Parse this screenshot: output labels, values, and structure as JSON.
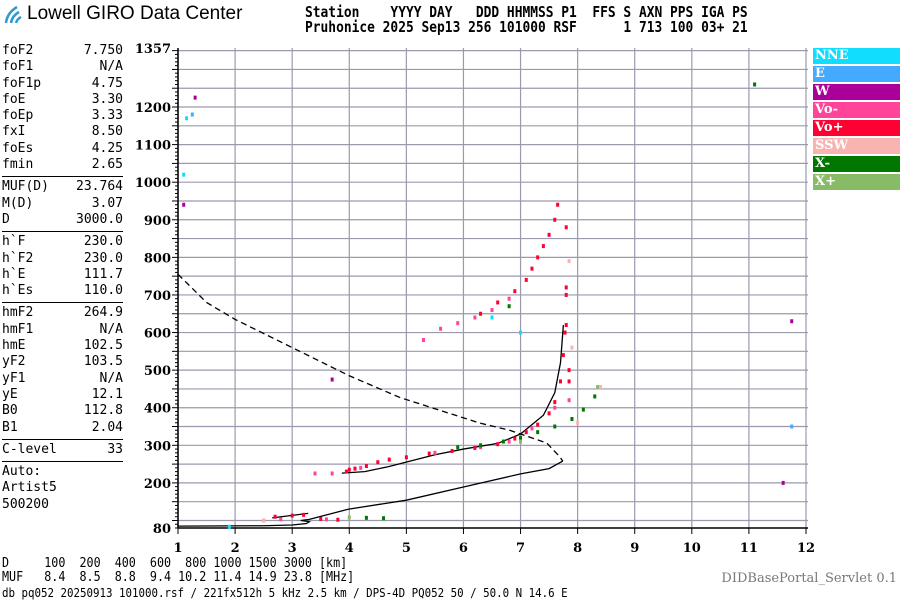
{
  "header": {
    "logo_text": "Lowell GIRO Data Center",
    "line1": "Station    YYYY DAY   DDD HHMMSS P1  FFS S AXN PPS IGA PS",
    "line2": "Pruhonice 2025 Sep13 256 101000 RSF      1 713 100 03+ 21"
  },
  "params": {
    "group1": [
      {
        "name": "foF2",
        "value": "7.750"
      },
      {
        "name": "foF1",
        "value": "N/A"
      },
      {
        "name": "foF1p",
        "value": "4.75"
      },
      {
        "name": "foE",
        "value": "3.30"
      },
      {
        "name": "foEp",
        "value": "3.33"
      },
      {
        "name": "fxI",
        "value": "8.50"
      },
      {
        "name": "foEs",
        "value": "4.25"
      },
      {
        "name": "fmin",
        "value": "2.65"
      }
    ],
    "group2": [
      {
        "name": "MUF(D)",
        "value": "23.764"
      },
      {
        "name": "M(D)",
        "value": "3.07"
      },
      {
        "name": "D",
        "value": "3000.0"
      }
    ],
    "group3": [
      {
        "name": "h`F",
        "value": "230.0"
      },
      {
        "name": "h`F2",
        "value": "230.0"
      },
      {
        "name": "h`E",
        "value": "111.7"
      },
      {
        "name": "h`Es",
        "value": "110.0"
      }
    ],
    "group4": [
      {
        "name": "hmF2",
        "value": "264.9"
      },
      {
        "name": "hmF1",
        "value": "N/A"
      },
      {
        "name": "hmE",
        "value": "102.5"
      },
      {
        "name": "yF2",
        "value": "103.5"
      },
      {
        "name": "yF1",
        "value": "N/A"
      },
      {
        "name": "yE",
        "value": "12.1"
      },
      {
        "name": "B0",
        "value": "112.8"
      },
      {
        "name": "B1",
        "value": "2.04"
      }
    ],
    "group5": [
      {
        "name": "C-level",
        "value": "33"
      }
    ],
    "auto": [
      "Auto:",
      "Artist5",
      "500200"
    ]
  },
  "legend": [
    {
      "label": "NNE",
      "color": "#11ddff"
    },
    {
      "label": "E",
      "color": "#44aaff"
    },
    {
      "label": "W",
      "color": "#aa0099"
    },
    {
      "label": "Vo-",
      "color": "#ff4499"
    },
    {
      "label": "Vo+",
      "color": "#ff0033"
    },
    {
      "label": "SSW",
      "color": "#f8b4b0"
    },
    {
      "label": "X-",
      "color": "#007700"
    },
    {
      "label": "X+",
      "color": "#88bb66"
    }
  ],
  "bottom": {
    "d_row": "D     100  200  400  600  800 1000 1500 3000 [km]",
    "muf_row": "MUF   8.4  8.5  8.8  9.4 10.2 11.4 14.9 23.8 [MHz]",
    "servlet": "DIDBasePortal_Servlet 0.1",
    "footer": "db pq052 20250913 101000.rsf / 221fx512h 5 kHz 2.5 km / DPS-4D PQ052 50 / 50.0 N 14.6 E"
  },
  "chart_data": {
    "type": "scatter",
    "xlim": [
      1,
      12
    ],
    "ylim": [
      80,
      1357
    ],
    "x_ticks": [
      "1",
      "2",
      "3",
      "4",
      "5",
      "6",
      "7",
      "8",
      "9",
      "10",
      "11",
      "12"
    ],
    "y_ticks": [
      "1357",
      "1200",
      "1100",
      "1000",
      "900",
      "800",
      "700",
      "600",
      "500",
      "400",
      "300",
      "200",
      "80"
    ],
    "grid": true,
    "legend_placement": "right",
    "series": [
      {
        "name": "Vo+",
        "color": "#ff0033",
        "points": [
          [
            3.95,
            230
          ],
          [
            4.0,
            235
          ],
          [
            4.1,
            238
          ],
          [
            4.3,
            245
          ],
          [
            4.5,
            255
          ],
          [
            4.7,
            262
          ],
          [
            5.0,
            268
          ],
          [
            5.4,
            278
          ],
          [
            5.8,
            285
          ],
          [
            6.2,
            293
          ],
          [
            6.6,
            303
          ],
          [
            6.9,
            318
          ],
          [
            7.1,
            335
          ],
          [
            7.3,
            355
          ],
          [
            7.5,
            385
          ],
          [
            7.6,
            415
          ],
          [
            7.7,
            470
          ],
          [
            7.75,
            540
          ],
          [
            7.78,
            600
          ],
          [
            7.8,
            620
          ],
          [
            7.85,
            470
          ],
          [
            7.85,
            500
          ],
          [
            6.3,
            650
          ],
          [
            6.6,
            680
          ],
          [
            6.9,
            710
          ],
          [
            7.1,
            740
          ],
          [
            7.2,
            770
          ],
          [
            7.3,
            800
          ],
          [
            7.4,
            830
          ],
          [
            7.5,
            860
          ],
          [
            7.6,
            900
          ],
          [
            7.65,
            940
          ],
          [
            7.8,
            700
          ],
          [
            7.8,
            720
          ],
          [
            7.8,
            880
          ],
          [
            2.7,
            110
          ],
          [
            3.0,
            113
          ],
          [
            3.2,
            115
          ],
          [
            3.5,
            104
          ],
          [
            3.8,
            102
          ]
        ]
      },
      {
        "name": "Vo-",
        "color": "#ff4499",
        "points": [
          [
            3.4,
            225
          ],
          [
            3.7,
            225
          ],
          [
            4.2,
            240
          ],
          [
            5.5,
            280
          ],
          [
            6.3,
            295
          ],
          [
            6.8,
            310
          ],
          [
            7.2,
            345
          ],
          [
            7.6,
            400
          ],
          [
            7.85,
            420
          ],
          [
            5.3,
            580
          ],
          [
            5.6,
            610
          ],
          [
            5.9,
            625
          ],
          [
            6.2,
            640
          ],
          [
            6.5,
            660
          ],
          [
            6.8,
            690
          ],
          [
            2.5,
            100
          ],
          [
            2.8,
            103
          ],
          [
            3.6,
            103
          ]
        ]
      },
      {
        "name": "X-",
        "color": "#007700",
        "points": [
          [
            5.9,
            295
          ],
          [
            6.3,
            300
          ],
          [
            6.7,
            310
          ],
          [
            7.0,
            320
          ],
          [
            7.3,
            335
          ],
          [
            7.6,
            350
          ],
          [
            7.9,
            370
          ],
          [
            8.1,
            395
          ],
          [
            8.3,
            430
          ],
          [
            6.8,
            670
          ],
          [
            4.3,
            107
          ],
          [
            4.6,
            106
          ],
          [
            11.1,
            1260
          ]
        ]
      },
      {
        "name": "X+",
        "color": "#88bb66",
        "points": [
          [
            4.0,
            108
          ],
          [
            7.0,
            310
          ],
          [
            8.35,
            455
          ]
        ]
      },
      {
        "name": "SSW",
        "color": "#f8b4b0",
        "points": [
          [
            8.4,
            455
          ],
          [
            7.9,
            560
          ],
          [
            7.85,
            790
          ],
          [
            2.5,
            100
          ],
          [
            8.0,
            360
          ]
        ]
      },
      {
        "name": "NNE",
        "color": "#11ddff",
        "points": [
          [
            1.15,
            1170
          ],
          [
            1.1,
            1020
          ],
          [
            6.5,
            640
          ],
          [
            7.0,
            600
          ],
          [
            1.9,
            83
          ]
        ]
      },
      {
        "name": "E",
        "color": "#44aaff",
        "points": [
          [
            1.25,
            1180
          ],
          [
            11.75,
            350
          ]
        ]
      },
      {
        "name": "W",
        "color": "#aa0099",
        "points": [
          [
            1.3,
            1225
          ],
          [
            1.1,
            940
          ],
          [
            11.6,
            200
          ],
          [
            11.75,
            630
          ],
          [
            3.7,
            475
          ]
        ]
      }
    ],
    "lines": [
      {
        "style": "solid",
        "points": [
          [
            1,
            85
          ],
          [
            2.5,
            86
          ],
          [
            3.0,
            88
          ],
          [
            3.25,
            92
          ],
          [
            3.3,
            97
          ],
          [
            3.15,
            100
          ],
          [
            3.3,
            103
          ],
          [
            3.98,
            130
          ],
          [
            5,
            154
          ],
          [
            6,
            189
          ],
          [
            7,
            224
          ],
          [
            7.5,
            238
          ],
          [
            7.74,
            258
          ]
        ]
      },
      {
        "style": "solid",
        "points": [
          [
            2.65,
            107
          ],
          [
            3.28,
            119
          ]
        ]
      },
      {
        "style": "solid",
        "points": [
          [
            3.87,
            226
          ],
          [
            4.27,
            230
          ],
          [
            4.68,
            243
          ],
          [
            5.5,
            275
          ],
          [
            6,
            290
          ],
          [
            6.6,
            305
          ],
          [
            7,
            330
          ],
          [
            7.4,
            380
          ],
          [
            7.6,
            440
          ],
          [
            7.7,
            520
          ],
          [
            7.75,
            620
          ]
        ]
      },
      {
        "style": "dashed",
        "points": [
          [
            1,
            755
          ],
          [
            1.5,
            680
          ],
          [
            2,
            635
          ],
          [
            3,
            560
          ],
          [
            4,
            485
          ],
          [
            4.89,
            427
          ],
          [
            6.29,
            359
          ],
          [
            6.81,
            340
          ],
          [
            7.46,
            306
          ],
          [
            7.69,
            269
          ],
          [
            7.74,
            258
          ]
        ]
      }
    ]
  }
}
